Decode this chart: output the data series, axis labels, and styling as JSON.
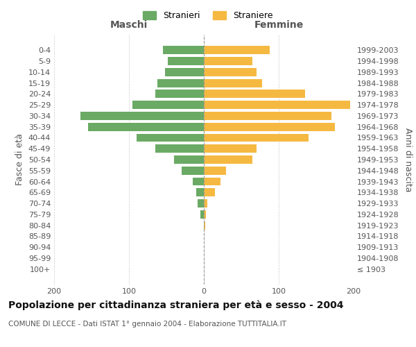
{
  "age_groups": [
    "100+",
    "95-99",
    "90-94",
    "85-89",
    "80-84",
    "75-79",
    "70-74",
    "65-69",
    "60-64",
    "55-59",
    "50-54",
    "45-49",
    "40-44",
    "35-39",
    "30-34",
    "25-29",
    "20-24",
    "15-19",
    "10-14",
    "5-9",
    "0-4"
  ],
  "birth_years": [
    "≤ 1903",
    "1904-1908",
    "1909-1913",
    "1914-1918",
    "1919-1923",
    "1924-1928",
    "1929-1933",
    "1934-1938",
    "1939-1943",
    "1944-1948",
    "1949-1953",
    "1954-1958",
    "1959-1963",
    "1964-1968",
    "1969-1973",
    "1974-1978",
    "1979-1983",
    "1984-1988",
    "1989-1993",
    "1994-1998",
    "1999-2003"
  ],
  "maschi": [
    0,
    0,
    0,
    0,
    0,
    5,
    8,
    10,
    15,
    30,
    40,
    65,
    90,
    155,
    165,
    95,
    65,
    62,
    52,
    48,
    55
  ],
  "femmine": [
    0,
    0,
    0,
    0,
    2,
    3,
    5,
    15,
    22,
    30,
    65,
    70,
    140,
    175,
    170,
    195,
    135,
    78,
    70,
    65,
    88
  ],
  "maschi_color": "#6aaa64",
  "femmine_color": "#f5b942",
  "xlim": 200,
  "title": "Popolazione per cittadinanza straniera per età e sesso - 2004",
  "subtitle": "COMUNE DI LECCE - Dati ISTAT 1° gennaio 2004 - Elaborazione TUTTITALIA.IT",
  "ylabel_left": "Fasce di età",
  "ylabel_right": "Anni di nascita",
  "legend_maschi": "Stranieri",
  "legend_femmine": "Straniere",
  "maschi_label": "Maschi",
  "femmine_label": "Femmine",
  "background_color": "#ffffff",
  "grid_color": "#cccccc",
  "text_color": "#555555",
  "title_fontsize": 10,
  "subtitle_fontsize": 7.5,
  "label_fontsize": 9,
  "tick_fontsize": 8
}
